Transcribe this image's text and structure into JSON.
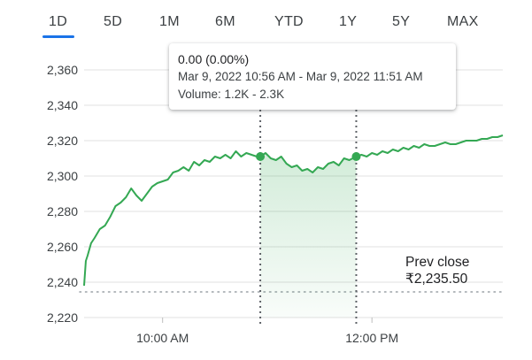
{
  "tabs": [
    {
      "label": "1D",
      "active": true
    },
    {
      "label": "5D",
      "active": false
    },
    {
      "label": "1M",
      "active": false
    },
    {
      "label": "6M",
      "active": false
    },
    {
      "label": "YTD",
      "active": false
    },
    {
      "label": "1Y",
      "active": false
    },
    {
      "label": "5Y",
      "active": false
    },
    {
      "label": "MAX",
      "active": false
    }
  ],
  "tooltip": {
    "change": "0.00 (0.00%)",
    "time_range": "Mar 9, 2022 10:56 AM - Mar 9, 2022 11:51 AM",
    "volume": "Volume: 1.2K - 2.3K"
  },
  "prev_close": {
    "label": "Prev close",
    "value": "₹2,235.50",
    "level": 2235.5
  },
  "colors": {
    "line": "#34a853",
    "accent": "#1a73e8",
    "grid": "#e0e0e0",
    "axis_text": "#3c4043",
    "marker": "#5f6368"
  },
  "chart_data": {
    "type": "line",
    "title": "",
    "xlabel": "",
    "ylabel": "",
    "ylim": [
      2220,
      2360
    ],
    "yticks": [
      2220,
      2240,
      2260,
      2280,
      2300,
      2320,
      2340,
      2360
    ],
    "ytick_labels": [
      "2,220",
      "2,240",
      "2,260",
      "2,280",
      "2,300",
      "2,320",
      "2,340",
      "2,360"
    ],
    "xticks": [
      {
        "t": "10:00",
        "label": "10:00 AM"
      },
      {
        "t": "12:00",
        "label": "12:00 PM"
      }
    ],
    "xlim": [
      "09:15",
      "13:15"
    ],
    "grid": true,
    "selection": {
      "start": "10:56",
      "end": "11:51",
      "start_value": 2311,
      "end_value": 2311
    },
    "series": [
      {
        "x": [
          "09:15",
          "09:16",
          "09:17",
          "09:19",
          "09:21",
          "09:24",
          "09:27",
          "09:30",
          "09:33",
          "09:36",
          "09:39",
          "09:42",
          "09:45",
          "09:48",
          "09:51",
          "09:54",
          "09:57",
          "10:00",
          "10:03",
          "10:06",
          "10:09",
          "10:12",
          "10:15",
          "10:18",
          "10:21",
          "10:24",
          "10:27",
          "10:30",
          "10:33",
          "10:36",
          "10:39",
          "10:42",
          "10:45",
          "10:48",
          "10:51",
          "10:54",
          "10:56",
          "10:59",
          "11:02",
          "11:05",
          "11:08",
          "11:11",
          "11:14",
          "11:17",
          "11:20",
          "11:23",
          "11:26",
          "11:29",
          "11:32",
          "11:35",
          "11:38",
          "11:41",
          "11:44",
          "11:47",
          "11:51",
          "11:54",
          "11:57",
          "12:00",
          "12:03",
          "12:06",
          "12:09",
          "12:12",
          "12:15",
          "12:18",
          "12:21",
          "12:24",
          "12:27",
          "12:30",
          "12:33",
          "12:36",
          "12:39",
          "12:42",
          "12:45",
          "12:48",
          "12:51",
          "12:54",
          "12:57",
          "13:00",
          "13:03",
          "13:06",
          "13:09",
          "13:12",
          "13:15"
        ],
        "y": [
          2238,
          2252,
          2255,
          2262,
          2265,
          2270,
          2272,
          2277,
          2283,
          2285,
          2288,
          2293,
          2289,
          2286,
          2290,
          2294,
          2296,
          2297,
          2298,
          2302,
          2303,
          2305,
          2303,
          2308,
          2306,
          2309,
          2308,
          2311,
          2310,
          2312,
          2310,
          2314,
          2311,
          2313,
          2312,
          2311,
          2311,
          2313,
          2310,
          2309,
          2311,
          2307,
          2305,
          2306,
          2303,
          2304,
          2302,
          2305,
          2304,
          2307,
          2308,
          2306,
          2310,
          2309,
          2311,
          2312,
          2311,
          2313,
          2312,
          2314,
          2313,
          2315,
          2314,
          2316,
          2315,
          2317,
          2316,
          2318,
          2317,
          2317,
          2318,
          2319,
          2318,
          2318,
          2319,
          2320,
          2320,
          2320,
          2321,
          2321,
          2322,
          2322,
          2323
        ]
      }
    ]
  }
}
